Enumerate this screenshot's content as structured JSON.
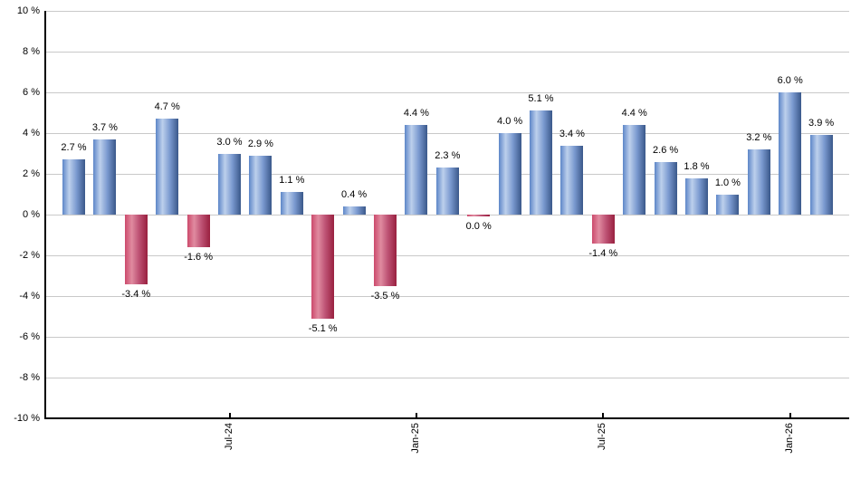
{
  "chart_data": {
    "type": "bar",
    "title": "",
    "xlabel": "",
    "ylabel": "",
    "unit": "%",
    "ylim": [
      -10,
      10
    ],
    "y_tick_step": 2,
    "grid": true,
    "legend": false,
    "y_tick_labels": [
      "10 %",
      "8 %",
      "6 %",
      "4 %",
      "2 %",
      "0 %",
      "-2 %",
      "-4 %",
      "-6 %",
      "-8 %",
      "-10 %"
    ],
    "x_ticks": [
      {
        "index": 5,
        "label": "Jul-24"
      },
      {
        "index": 11,
        "label": "Jan-25"
      },
      {
        "index": 17,
        "label": "Jul-25"
      },
      {
        "index": 23,
        "label": "Jan-26"
      }
    ],
    "values": [
      2.7,
      3.7,
      -3.4,
      4.7,
      -1.6,
      3.0,
      2.9,
      1.1,
      -5.1,
      0.4,
      -3.5,
      4.4,
      2.3,
      0.0,
      4.0,
      5.1,
      3.4,
      -1.4,
      4.4,
      2.6,
      1.8,
      1.0,
      3.2,
      6.0,
      3.9
    ],
    "bar_labels": [
      "2.7 %",
      "3.7 %",
      "-3.4 %",
      "4.7 %",
      "-1.6 %",
      "3.0 %",
      "2.9 %",
      "1.1 %",
      "-5.1 %",
      "0.4 %",
      "-3.5 %",
      "4.4 %",
      "2.3 %",
      "0.0 %",
      "4.0 %",
      "5.1 %",
      "3.4 %",
      "-1.4 %",
      "4.4 %",
      "2.6 %",
      "1.8 %",
      "1.0 %",
      "3.2 %",
      "6.0 %",
      "3.9 %"
    ],
    "colors": {
      "background": "#ffffff",
      "positive_bar_edge_left": "#5d86c8",
      "positive_bar_highlight": "#bdd0ec",
      "positive_bar_edge_right": "#3a588a",
      "negative_bar_edge_left": "#cc4a6c",
      "negative_bar_highlight": "#e08ba0",
      "negative_bar_edge_right": "#99203f",
      "gridline": "#c9c9c9",
      "axis": "#000000",
      "text": "#000000"
    }
  }
}
